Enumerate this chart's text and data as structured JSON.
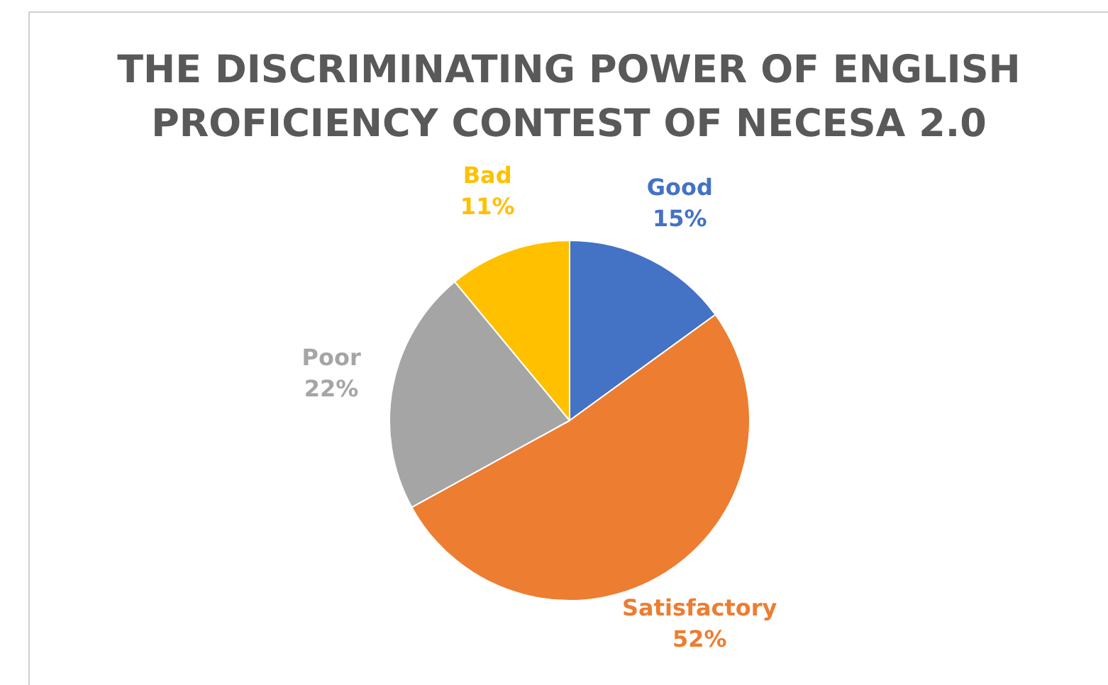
{
  "chart_data": {
    "type": "pie",
    "title": "THE DISCRIMINATING POWER OF ENGLISH PROFICIENCY CONTEST OF NECESA 2.0",
    "categories": [
      "Good",
      "Satisfactory",
      "Poor",
      "Bad"
    ],
    "values": [
      15,
      52,
      22,
      11
    ],
    "value_labels": [
      "15%",
      "52%",
      "22%",
      "11%"
    ],
    "colors": [
      "#4472c4",
      "#ed7d31",
      "#a5a5a5",
      "#ffc000"
    ],
    "legend": false
  }
}
